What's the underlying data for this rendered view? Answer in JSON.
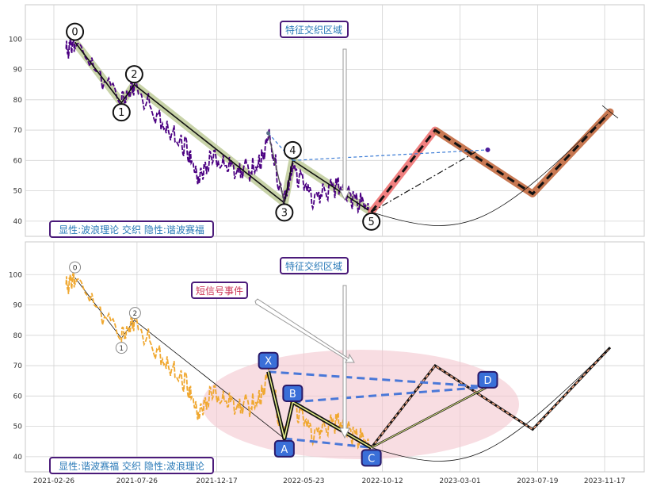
{
  "chart_data": [
    {
      "type": "line",
      "panel": "top",
      "ylim": [
        35,
        110
      ],
      "yticks": [
        40,
        50,
        60,
        70,
        80,
        90,
        100
      ],
      "annotations": {
        "zone_label": "特征交织区域",
        "legend_label": "显性:波浪理论 交织 隐性:谐波赛福"
      },
      "price_series_color": "#4b0082",
      "wave_points": [
        {
          "label": "0",
          "x": "2021-04-05",
          "y": 99
        },
        {
          "label": "1",
          "x": "2021-06-28",
          "y": 79
        },
        {
          "label": "2",
          "x": "2021-07-21",
          "y": 85
        },
        {
          "label": "3",
          "x": "2022-04-18",
          "y": 46
        },
        {
          "label": "4",
          "x": "2022-05-03",
          "y": 60
        },
        {
          "label": "5",
          "x": "2022-09-22",
          "y": 43
        }
      ],
      "projection_points": [
        {
          "x": "2022-09-22",
          "y": 43
        },
        {
          "x": "2023-01-15",
          "y": 70
        },
        {
          "x": "2023-07-10",
          "y": 49
        },
        {
          "x": "2023-11-27",
          "y": 76
        }
      ],
      "colors": {
        "wave_band": "#c8d3a8",
        "projection_band_1": "#f08080",
        "projection_band_2": "#c87852",
        "dashed_link": "#3a7bd5"
      }
    },
    {
      "type": "line",
      "panel": "bottom",
      "ylim": [
        35,
        110
      ],
      "yticks": [
        40,
        50,
        60,
        70,
        80,
        90,
        100
      ],
      "annotations": {
        "zone_label": "特征交织区域",
        "signal_label": "短信号事件",
        "legend_label": "显性:谐波赛福 交织 隐性:波浪理论"
      },
      "price_series_color": "#f0a830",
      "wave_points": [
        {
          "label": "0",
          "x": "2021-04-05",
          "y": 99
        },
        {
          "label": "1",
          "x": "2021-06-28",
          "y": 79
        },
        {
          "label": "2",
          "x": "2021-07-21",
          "y": 85
        }
      ],
      "harmonic_points": [
        {
          "label": "X",
          "x": "2022-03-20",
          "y": 68
        },
        {
          "label": "A",
          "x": "2022-04-18",
          "y": 46
        },
        {
          "label": "B",
          "x": "2022-05-03",
          "y": 58
        },
        {
          "label": "C",
          "x": "2022-09-22",
          "y": 43
        },
        {
          "label": "D",
          "x": "2023-04-20",
          "y": 63
        }
      ],
      "colors": {
        "harmonic_node": "#3a6fd8",
        "harmonic_dash": "#4a78d8",
        "highlight_zone": "#f4c7cf"
      }
    }
  ],
  "x_axis": {
    "ticks": [
      "2021-02-26",
      "2021-07-26",
      "2021-12-17",
      "2022-05-23",
      "2022-10-12",
      "2023-03-01",
      "2023-07-19",
      "2023-11-17"
    ]
  }
}
